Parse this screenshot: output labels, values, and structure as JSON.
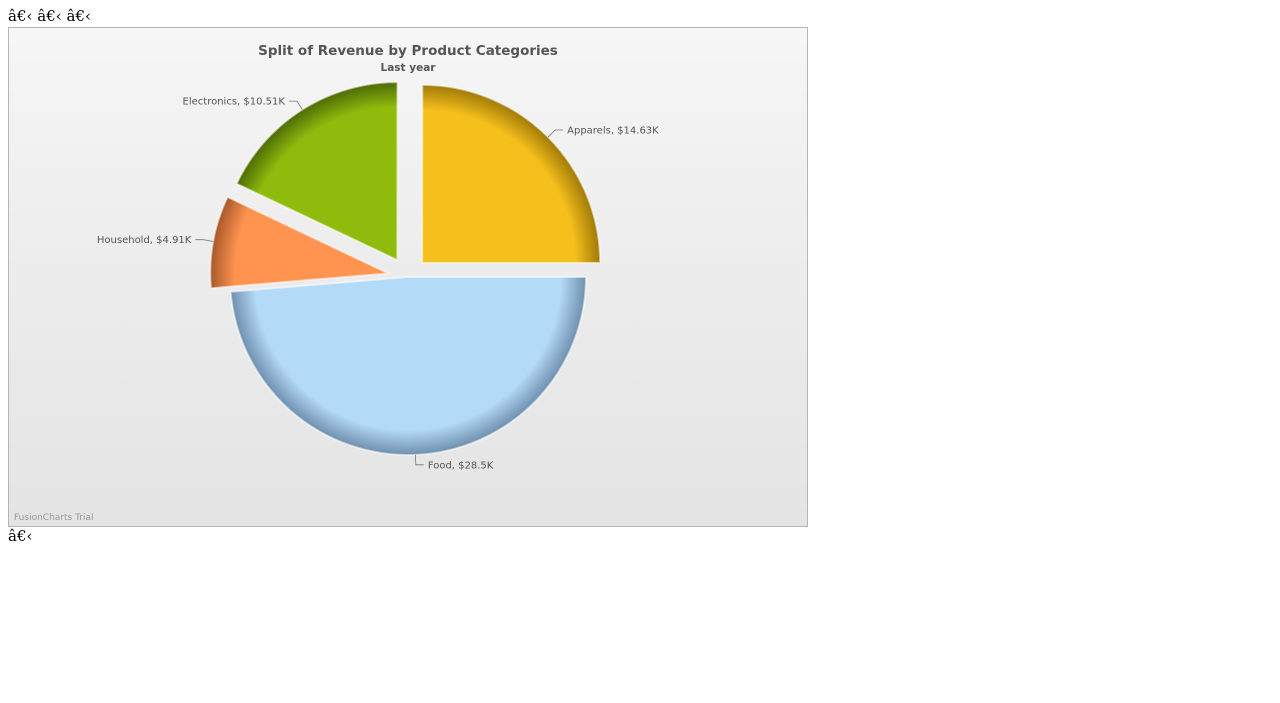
{
  "page": {
    "top_text": "â€‹ â€‹ â€‹",
    "bottom_text": "â€‹"
  },
  "chart_data": {
    "type": "pie",
    "title": "Split of Revenue by Product Categories",
    "subtitle": "Last year",
    "watermark": "FusionCharts Trial",
    "currency_prefix": "$",
    "slices": [
      {
        "label": "Food",
        "value": 28.5,
        "value_text": "$28.5K",
        "color": "#b3daf7",
        "shade": "#6f8fae",
        "exploded": false
      },
      {
        "label": "Household",
        "value": 4.91,
        "value_text": "$4.91K",
        "color": "#ff9450",
        "shade": "#a8582a",
        "exploded": true
      },
      {
        "label": "Electronics",
        "value": 10.51,
        "value_text": "$10.51K",
        "color": "#8fbb0d",
        "shade": "#4d6b05",
        "exploded": true
      },
      {
        "label": "Apparels",
        "value": 14.63,
        "value_text": "$14.63K",
        "color": "#f5bf1c",
        "shade": "#a07a08",
        "exploded": true
      }
    ],
    "start_angle_deg": 0,
    "direction": "clockwise",
    "legend": "none",
    "labels": "outside-with-leader-lines"
  }
}
